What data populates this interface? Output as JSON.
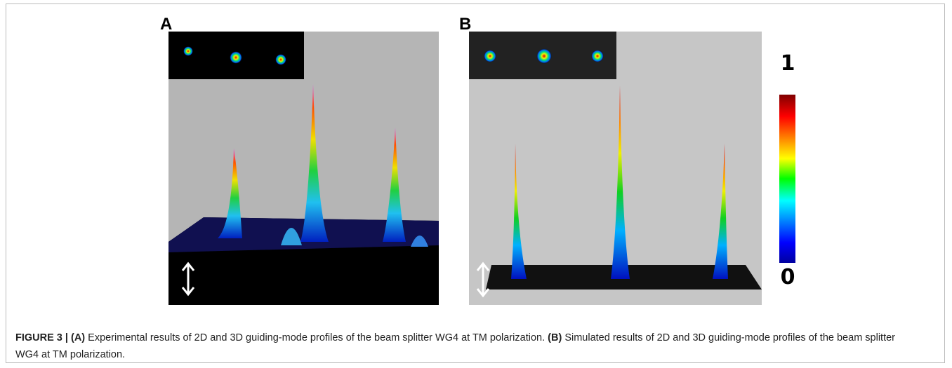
{
  "panels": [
    {
      "label": "A"
    },
    {
      "label": "B"
    }
  ],
  "colorbar": {
    "max": "1",
    "min": "0"
  },
  "caption": {
    "figure": "FIGURE 3 |",
    "a_label": "(A)",
    "a_text": "Experimental results of 2D and 3D guiding-mode profiles of the beam splitter WG4 at TM polarization.",
    "b_label": "(B)",
    "b_text": "Simulated results of 2D and 3D guiding-mode profiles of the beam splitter WG4 at TM polarization."
  }
}
